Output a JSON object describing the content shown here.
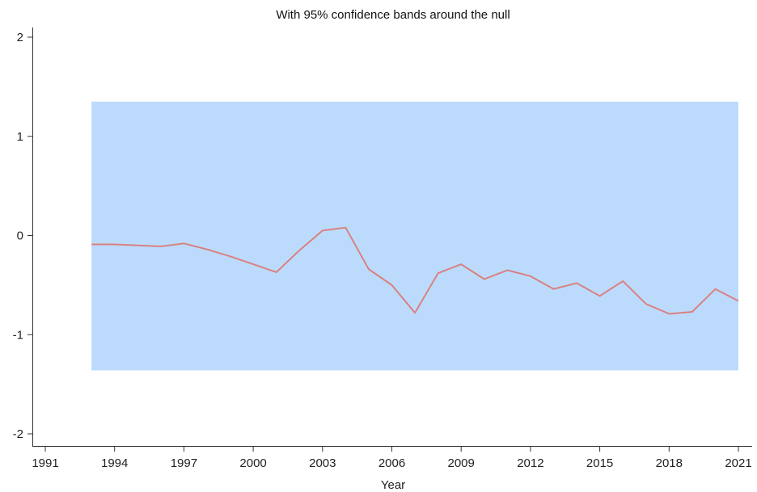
{
  "chart_data": {
    "type": "line",
    "title": "With 95% confidence bands around the null",
    "xlabel": "Year",
    "ylabel": "",
    "xlim": [
      1991,
      2021
    ],
    "ylim": [
      -2,
      2
    ],
    "x_ticks": [
      1991,
      1994,
      1997,
      2000,
      2003,
      2006,
      2009,
      2012,
      2015,
      2018,
      2021
    ],
    "y_ticks": [
      -2,
      -1,
      0,
      1,
      2
    ],
    "grid": false,
    "band": {
      "x_start": 1993,
      "x_end": 2021,
      "lower": -1.36,
      "upper": 1.35,
      "color": "#bcdbfc"
    },
    "series": [
      {
        "color": "#d98181",
        "x": [
          1993,
          1994,
          1995,
          1996,
          1997,
          1998,
          1999,
          2000,
          2001,
          2002,
          2003,
          2004,
          2005,
          2006,
          2007,
          2008,
          2009,
          2010,
          2011,
          2012,
          2013,
          2014,
          2015,
          2016,
          2017,
          2018,
          2019,
          2020,
          2021
        ],
        "values": [
          -0.09,
          -0.09,
          -0.1,
          -0.11,
          -0.08,
          -0.14,
          -0.21,
          -0.29,
          -0.37,
          -0.15,
          0.05,
          0.08,
          -0.34,
          -0.5,
          -0.78,
          -0.38,
          -0.29,
          -0.44,
          -0.35,
          -0.41,
          -0.54,
          -0.48,
          -0.61,
          -0.46,
          -0.69,
          -0.79,
          -0.77,
          -0.54,
          -0.66
        ]
      }
    ]
  }
}
